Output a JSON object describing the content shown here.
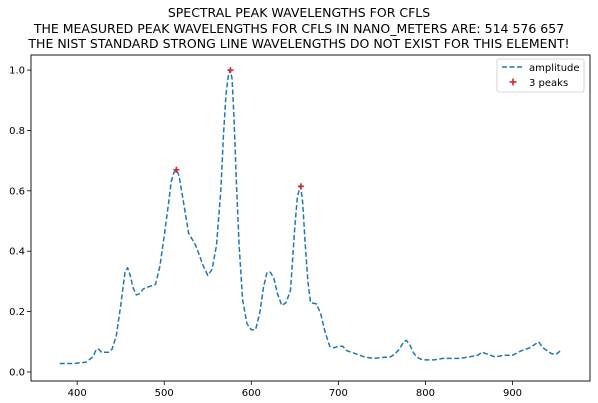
{
  "chart_data": {
    "type": "line",
    "title": [
      "SPECTRAL PEAK WAVELENGTHS FOR CFLS",
      "THE MEASURED PEAK WAVELENGTHS FOR CFLS IN NANO_METERS ARE: 514 576 657",
      "THE NIST STANDARD STRONG LINE WAVELENGTHS DO NOT EXIST FOR THIS ELEMENT!"
    ],
    "xlabel": "",
    "ylabel": "",
    "xlim": [
      347,
      989
    ],
    "ylim": [
      -0.03,
      1.05
    ],
    "xticks": [
      400,
      500,
      600,
      700,
      800,
      900
    ],
    "yticks": [
      0.0,
      0.2,
      0.4,
      0.6,
      0.8,
      1.0
    ],
    "ytick_labels": [
      "0.0",
      "0.2",
      "0.4",
      "0.6",
      "0.8",
      "1.0"
    ],
    "grid": false,
    "legend_position": "top-right",
    "series": [
      {
        "name": "amplitude",
        "style": "dashed",
        "color": "#1f77b4",
        "x": [
          380,
          395,
          410,
          418,
          422,
          425,
          428,
          432,
          436,
          440,
          445,
          450,
          455,
          458,
          461,
          464,
          468,
          472,
          476,
          480,
          485,
          490,
          495,
          500,
          505,
          508,
          511,
          514,
          517,
          520,
          524,
          528,
          532,
          536,
          540,
          545,
          550,
          555,
          560,
          565,
          568,
          571,
          574,
          576,
          578,
          580,
          583,
          586,
          590,
          595,
          600,
          605,
          610,
          614,
          618,
          622,
          626,
          630,
          635,
          640,
          645,
          650,
          653,
          656,
          657,
          659,
          662,
          665,
          668,
          675,
          680,
          685,
          690,
          695,
          700,
          705,
          710,
          715,
          720,
          730,
          740,
          750,
          760,
          765,
          770,
          775,
          778,
          782,
          786,
          790,
          795,
          800,
          810,
          820,
          830,
          840,
          850,
          860,
          865,
          870,
          880,
          890,
          900,
          910,
          915,
          920,
          925,
          930,
          935,
          940,
          945,
          950,
          955
        ],
        "values": [
          0.028,
          0.028,
          0.032,
          0.05,
          0.075,
          0.075,
          0.065,
          0.065,
          0.065,
          0.075,
          0.12,
          0.22,
          0.33,
          0.345,
          0.32,
          0.28,
          0.255,
          0.26,
          0.275,
          0.28,
          0.285,
          0.29,
          0.35,
          0.45,
          0.56,
          0.63,
          0.66,
          0.67,
          0.65,
          0.6,
          0.53,
          0.46,
          0.44,
          0.42,
          0.39,
          0.35,
          0.32,
          0.34,
          0.42,
          0.6,
          0.78,
          0.92,
          0.99,
          1.0,
          0.97,
          0.85,
          0.62,
          0.42,
          0.24,
          0.16,
          0.14,
          0.14,
          0.2,
          0.28,
          0.33,
          0.33,
          0.31,
          0.26,
          0.22,
          0.23,
          0.27,
          0.48,
          0.58,
          0.615,
          0.61,
          0.56,
          0.42,
          0.3,
          0.23,
          0.225,
          0.19,
          0.13,
          0.085,
          0.08,
          0.085,
          0.085,
          0.07,
          0.065,
          0.06,
          0.05,
          0.045,
          0.048,
          0.05,
          0.06,
          0.075,
          0.1,
          0.105,
          0.09,
          0.065,
          0.05,
          0.042,
          0.04,
          0.04,
          0.045,
          0.045,
          0.045,
          0.05,
          0.055,
          0.065,
          0.06,
          0.05,
          0.055,
          0.055,
          0.07,
          0.075,
          0.08,
          0.09,
          0.1,
          0.08,
          0.07,
          0.06,
          0.058,
          0.07
        ]
      },
      {
        "name": "3 peaks",
        "style": "markers",
        "marker": "+",
        "color": "#d62728",
        "x": [
          514,
          576,
          657
        ],
        "values": [
          0.67,
          1.0,
          0.615
        ]
      }
    ]
  }
}
